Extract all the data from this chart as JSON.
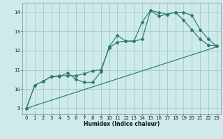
{
  "xlabel": "Humidex (Indice chaleur)",
  "background_color": "#ceeaea",
  "grid_color": "#a8cece",
  "line_color": "#2d7b6e",
  "xlim": [
    -0.5,
    23.5
  ],
  "ylim": [
    8.7,
    14.5
  ],
  "yticks": [
    9,
    10,
    11,
    12,
    13,
    14
  ],
  "xticks": [
    0,
    1,
    2,
    3,
    4,
    5,
    6,
    7,
    8,
    9,
    10,
    11,
    12,
    13,
    14,
    15,
    16,
    17,
    18,
    19,
    20,
    21,
    22,
    23
  ],
  "line1_x": [
    0,
    1,
    2,
    3,
    4,
    5,
    6,
    7,
    8,
    9,
    10,
    11,
    12,
    13,
    14,
    15,
    16,
    17,
    18,
    19,
    20,
    21,
    22,
    23
  ],
  "line1_y": [
    9.0,
    10.2,
    10.4,
    10.65,
    10.65,
    10.85,
    10.5,
    10.35,
    10.35,
    10.9,
    12.2,
    12.8,
    12.5,
    12.5,
    12.6,
    14.1,
    13.8,
    13.9,
    14.0,
    13.6,
    13.1,
    12.6,
    12.3,
    12.25
  ],
  "line2_x": [
    0,
    1,
    2,
    3,
    4,
    5,
    6,
    7,
    8,
    9,
    10,
    11,
    12,
    13,
    14,
    15,
    16,
    17,
    18,
    19,
    20,
    21,
    22,
    23
  ],
  "line2_y": [
    9.0,
    10.2,
    10.4,
    10.65,
    10.7,
    10.7,
    10.7,
    10.8,
    10.95,
    11.0,
    12.15,
    12.45,
    12.5,
    12.5,
    13.5,
    14.1,
    14.0,
    13.9,
    14.0,
    14.0,
    13.85,
    13.1,
    12.6,
    12.25
  ],
  "line3_x": [
    0,
    23
  ],
  "line3_y": [
    9.0,
    12.2
  ]
}
